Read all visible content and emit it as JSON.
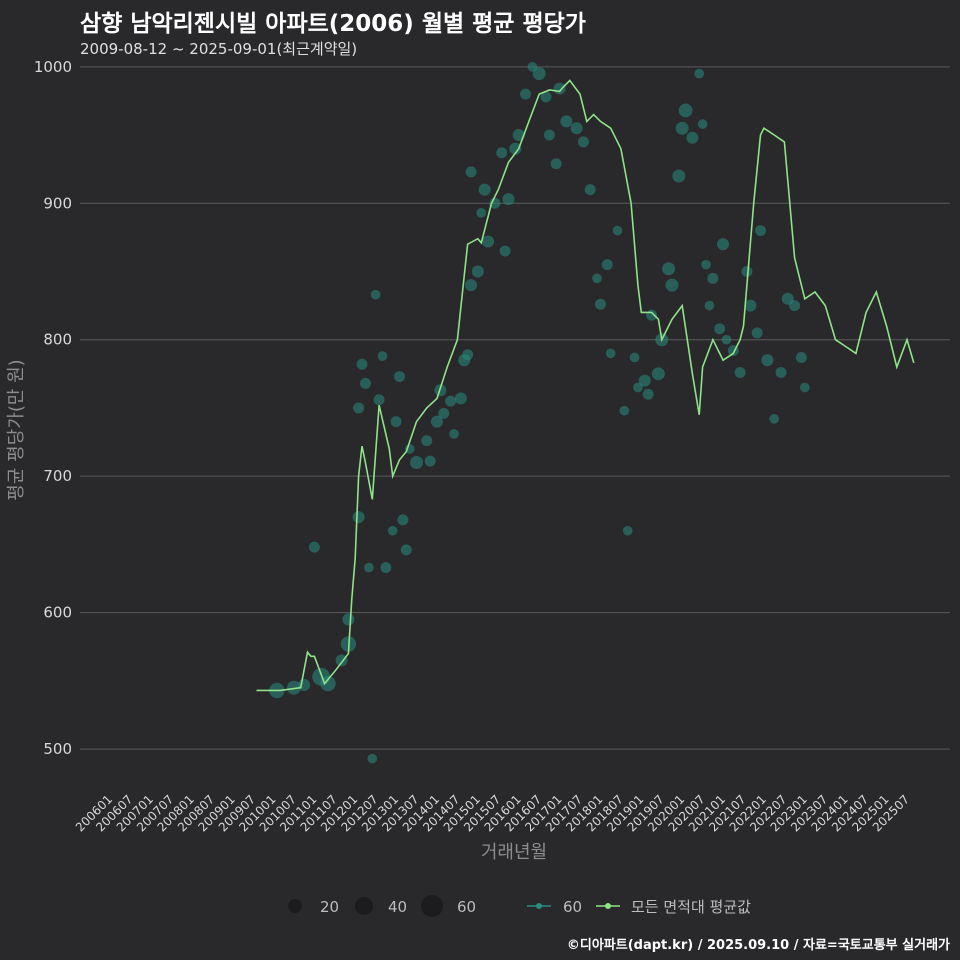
{
  "title": "삼향 남악리젠시빌 아파트(2006) 월별 평균 평당가",
  "subtitle": "2009-08-12 ~ 2025-09-01(최근계약일)",
  "footer": "©디아파트(dapt.kr) / 2025.09.10 / 자료=국토교통부 실거래가",
  "colors": {
    "background": "#29282b",
    "line": "#8fe388",
    "points": "#2a8c80",
    "grid": "#5a5a5a"
  },
  "chart_data": {
    "type": "line",
    "title": "삼향 남악리젠시빌 아파트(2006) 월별 평균 평당가",
    "xlabel": "거래년월",
    "ylabel": "평균 평당가(만 원)",
    "ylim": [
      470,
      1005
    ],
    "yticks": [
      500,
      600,
      700,
      800,
      900,
      1000
    ],
    "xticks": [
      "200601",
      "200607",
      "200701",
      "200707",
      "200801",
      "200807",
      "200901",
      "200907",
      "201001",
      "201007",
      "201101",
      "201107",
      "201201",
      "201207",
      "201301",
      "201307",
      "201401",
      "201407",
      "201501",
      "201507",
      "201601",
      "201607",
      "201701",
      "201707",
      "201801",
      "201807",
      "201901",
      "201907",
      "202001",
      "202007",
      "202101",
      "202107",
      "202201",
      "202207",
      "202301",
      "202307",
      "202401",
      "202407",
      "202501",
      "202507"
    ],
    "line_series": {
      "name": "모든 면적대 평균값",
      "x": [
        "200908",
        "201003",
        "201009",
        "201011",
        "201012",
        "201101",
        "201104",
        "201107",
        "201111",
        "201112",
        "201201",
        "201202",
        "201203",
        "201204",
        "201206",
        "201208",
        "201211",
        "201212",
        "201302",
        "201304",
        "201307",
        "201310",
        "201401",
        "201404",
        "201407",
        "201410",
        "201501",
        "201502",
        "201505",
        "201507",
        "201510",
        "201601",
        "201604",
        "201607",
        "201610",
        "201701",
        "201702",
        "201704",
        "201707",
        "201709",
        "201711",
        "201801",
        "201804",
        "201807",
        "201810",
        "201812",
        "201901",
        "201904",
        "201906",
        "201907",
        "201910",
        "202001",
        "202004",
        "202006",
        "202007",
        "202010",
        "202012",
        "202101",
        "202104",
        "202106",
        "202107",
        "202110",
        "202112",
        "202201",
        "202204",
        "202207",
        "202210",
        "202301",
        "202304",
        "202307",
        "202310",
        "202401",
        "202404",
        "202407",
        "202410",
        "202501",
        "202504",
        "202507",
        "202509"
      ],
      "values": [
        543,
        543,
        545,
        571,
        568,
        568,
        548,
        557,
        570,
        610,
        640,
        700,
        722,
        710,
        683,
        752,
        720,
        700,
        712,
        718,
        740,
        750,
        757,
        780,
        800,
        870,
        874,
        871,
        900,
        910,
        930,
        940,
        960,
        980,
        983,
        982,
        985,
        990,
        980,
        960,
        965,
        960,
        955,
        940,
        900,
        840,
        820,
        820,
        815,
        800,
        815,
        825,
        775,
        745,
        780,
        800,
        790,
        785,
        790,
        800,
        810,
        900,
        950,
        955,
        950,
        945,
        860,
        830,
        835,
        825,
        800,
        795,
        790,
        820,
        835,
        810,
        780,
        800,
        783
      ]
    },
    "scatter_series": {
      "name": "60",
      "size_legend": [
        20,
        40,
        60
      ],
      "points": [
        {
          "x": "201002",
          "y": 543,
          "size": 40
        },
        {
          "x": "201007",
          "y": 545,
          "size": 30
        },
        {
          "x": "201010",
          "y": 547,
          "size": 20
        },
        {
          "x": "201101",
          "y": 648,
          "size": 15
        },
        {
          "x": "201103",
          "y": 553,
          "size": 60
        },
        {
          "x": "201105",
          "y": 548,
          "size": 40
        },
        {
          "x": "201109",
          "y": 565,
          "size": 20
        },
        {
          "x": "201111",
          "y": 577,
          "size": 40
        },
        {
          "x": "201111",
          "y": 595,
          "size": 20
        },
        {
          "x": "201202",
          "y": 670,
          "size": 20
        },
        {
          "x": "201202",
          "y": 750,
          "size": 15
        },
        {
          "x": "201203",
          "y": 782,
          "size": 15
        },
        {
          "x": "201204",
          "y": 768,
          "size": 15
        },
        {
          "x": "201205",
          "y": 633,
          "size": 10
        },
        {
          "x": "201206",
          "y": 493,
          "size": 10
        },
        {
          "x": "201207",
          "y": 833,
          "size": 10
        },
        {
          "x": "201208",
          "y": 756,
          "size": 15
        },
        {
          "x": "201209",
          "y": 788,
          "size": 10
        },
        {
          "x": "201210",
          "y": 633,
          "size": 15
        },
        {
          "x": "201212",
          "y": 660,
          "size": 10
        },
        {
          "x": "201301",
          "y": 740,
          "size": 15
        },
        {
          "x": "201302",
          "y": 773,
          "size": 15
        },
        {
          "x": "201303",
          "y": 668,
          "size": 15
        },
        {
          "x": "201304",
          "y": 646,
          "size": 15
        },
        {
          "x": "201305",
          "y": 720,
          "size": 10
        },
        {
          "x": "201307",
          "y": 710,
          "size": 25
        },
        {
          "x": "201310",
          "y": 726,
          "size": 15
        },
        {
          "x": "201311",
          "y": 711,
          "size": 15
        },
        {
          "x": "201401",
          "y": 740,
          "size": 20
        },
        {
          "x": "201402",
          "y": 763,
          "size": 20
        },
        {
          "x": "201403",
          "y": 746,
          "size": 15
        },
        {
          "x": "201405",
          "y": 755,
          "size": 15
        },
        {
          "x": "201406",
          "y": 731,
          "size": 10
        },
        {
          "x": "201408",
          "y": 757,
          "size": 20
        },
        {
          "x": "201409",
          "y": 785,
          "size": 20
        },
        {
          "x": "201410",
          "y": 789,
          "size": 15
        },
        {
          "x": "201411",
          "y": 840,
          "size": 20
        },
        {
          "x": "201411",
          "y": 923,
          "size": 15
        },
        {
          "x": "201501",
          "y": 850,
          "size": 20
        },
        {
          "x": "201502",
          "y": 893,
          "size": 10
        },
        {
          "x": "201503",
          "y": 910,
          "size": 20
        },
        {
          "x": "201504",
          "y": 872,
          "size": 20
        },
        {
          "x": "201506",
          "y": 900,
          "size": 15
        },
        {
          "x": "201508",
          "y": 937,
          "size": 15
        },
        {
          "x": "201509",
          "y": 865,
          "size": 15
        },
        {
          "x": "201510",
          "y": 903,
          "size": 20
        },
        {
          "x": "201512",
          "y": 940,
          "size": 20
        },
        {
          "x": "201601",
          "y": 950,
          "size": 20
        },
        {
          "x": "201603",
          "y": 980,
          "size": 15
        },
        {
          "x": "201605",
          "y": 1000,
          "size": 10
        },
        {
          "x": "201607",
          "y": 995,
          "size": 25
        },
        {
          "x": "201609",
          "y": 978,
          "size": 15
        },
        {
          "x": "201610",
          "y": 950,
          "size": 15
        },
        {
          "x": "201612",
          "y": 929,
          "size": 15
        },
        {
          "x": "201701",
          "y": 984,
          "size": 20
        },
        {
          "x": "201703",
          "y": 960,
          "size": 20
        },
        {
          "x": "201706",
          "y": 955,
          "size": 20
        },
        {
          "x": "201708",
          "y": 945,
          "size": 15
        },
        {
          "x": "201710",
          "y": 910,
          "size": 15
        },
        {
          "x": "201712",
          "y": 845,
          "size": 10
        },
        {
          "x": "201801",
          "y": 826,
          "size": 15
        },
        {
          "x": "201803",
          "y": 855,
          "size": 15
        },
        {
          "x": "201804",
          "y": 790,
          "size": 10
        },
        {
          "x": "201806",
          "y": 880,
          "size": 10
        },
        {
          "x": "201808",
          "y": 748,
          "size": 10
        },
        {
          "x": "201809",
          "y": 660,
          "size": 10
        },
        {
          "x": "201811",
          "y": 787,
          "size": 10
        },
        {
          "x": "201812",
          "y": 765,
          "size": 10
        },
        {
          "x": "201902",
          "y": 770,
          "size": 20
        },
        {
          "x": "201903",
          "y": 760,
          "size": 15
        },
        {
          "x": "201904",
          "y": 818,
          "size": 15
        },
        {
          "x": "201906",
          "y": 775,
          "size": 25
        },
        {
          "x": "201907",
          "y": 800,
          "size": 25
        },
        {
          "x": "201909",
          "y": 852,
          "size": 25
        },
        {
          "x": "201910",
          "y": 840,
          "size": 25
        },
        {
          "x": "201912",
          "y": 920,
          "size": 25
        },
        {
          "x": "202001",
          "y": 955,
          "size": 25
        },
        {
          "x": "202002",
          "y": 968,
          "size": 30
        },
        {
          "x": "202004",
          "y": 948,
          "size": 20
        },
        {
          "x": "202006",
          "y": 995,
          "size": 10
        },
        {
          "x": "202007",
          "y": 958,
          "size": 10
        },
        {
          "x": "202008",
          "y": 855,
          "size": 10
        },
        {
          "x": "202009",
          "y": 825,
          "size": 10
        },
        {
          "x": "202010",
          "y": 845,
          "size": 15
        },
        {
          "x": "202012",
          "y": 808,
          "size": 15
        },
        {
          "x": "202101",
          "y": 870,
          "size": 20
        },
        {
          "x": "202102",
          "y": 800,
          "size": 10
        },
        {
          "x": "202104",
          "y": 792,
          "size": 15
        },
        {
          "x": "202106",
          "y": 776,
          "size": 15
        },
        {
          "x": "202108",
          "y": 850,
          "size": 15
        },
        {
          "x": "202109",
          "y": 825,
          "size": 20
        },
        {
          "x": "202111",
          "y": 805,
          "size": 15
        },
        {
          "x": "202112",
          "y": 880,
          "size": 15
        },
        {
          "x": "202202",
          "y": 785,
          "size": 20
        },
        {
          "x": "202204",
          "y": 742,
          "size": 10
        },
        {
          "x": "202206",
          "y": 776,
          "size": 15
        },
        {
          "x": "202208",
          "y": 830,
          "size": 20
        },
        {
          "x": "202210",
          "y": 825,
          "size": 15
        },
        {
          "x": "202212",
          "y": 787,
          "size": 15
        },
        {
          "x": "202301",
          "y": 765,
          "size": 10
        }
      ]
    },
    "legend": {
      "size_labels": [
        "20",
        "40",
        "60"
      ],
      "series_label": "60",
      "line_label": "모든 면적대 평균값",
      "position": "bottom"
    }
  }
}
